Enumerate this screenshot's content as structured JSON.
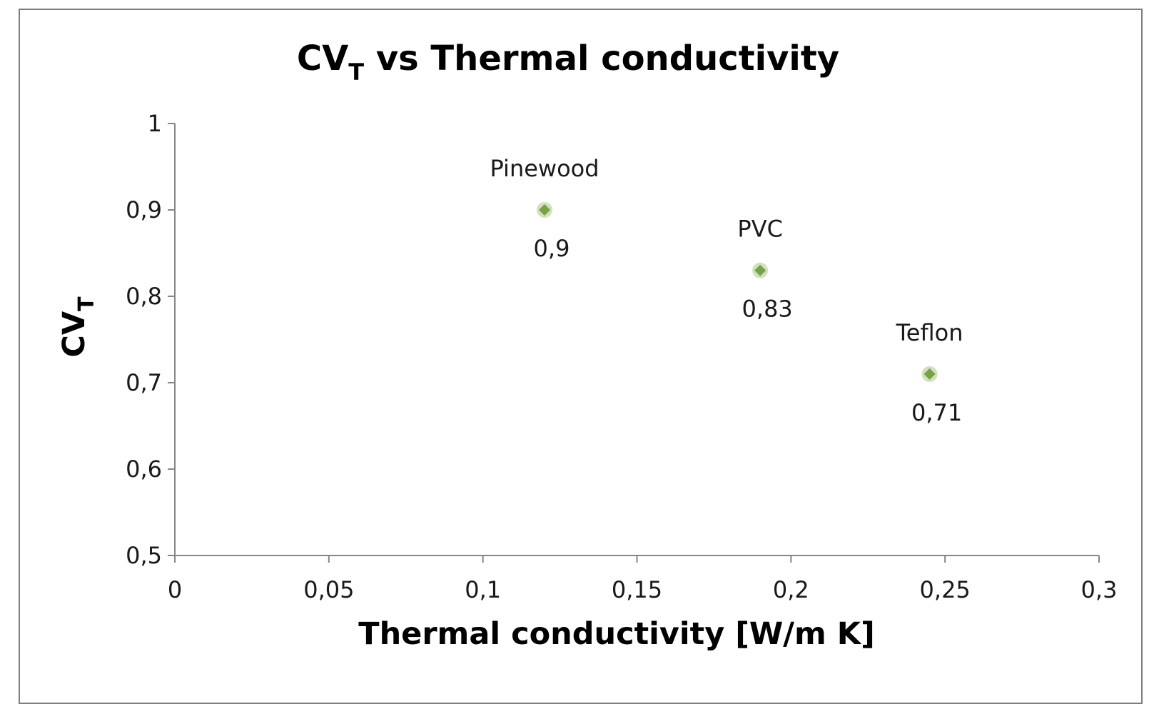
{
  "chart_data": {
    "type": "scatter",
    "title": "CV",
    "title_subscript": "T",
    "title_suffix": " vs Thermal conductivity",
    "xlabel": "Thermal conductivity [W/m K]",
    "ylabel": "CV",
    "ylabel_subscript": "T",
    "xlim": [
      0,
      0.3
    ],
    "ylim": [
      0.5,
      1
    ],
    "x_ticks": [
      0,
      0.05,
      0.1,
      0.15,
      0.2,
      0.25,
      0.3
    ],
    "x_tick_labels": [
      "0",
      "0,05",
      "0,1",
      "0,15",
      "0,2",
      "0,25",
      "0,3"
    ],
    "y_ticks": [
      0.5,
      0.6,
      0.7,
      0.8,
      0.9,
      1
    ],
    "y_tick_labels": [
      "0,5",
      "0,6",
      "0,7",
      "0,8",
      "0,9",
      "1"
    ],
    "grid": false,
    "legend": false,
    "marker_color": "#77a341",
    "points": [
      {
        "name": "Pinewood",
        "x": 0.12,
        "y": 0.9,
        "value_label": "0,9"
      },
      {
        "name": "PVC",
        "x": 0.19,
        "y": 0.83,
        "value_label": "0,83"
      },
      {
        "name": "Teflon",
        "x": 0.245,
        "y": 0.71,
        "value_label": "0,71"
      }
    ]
  }
}
